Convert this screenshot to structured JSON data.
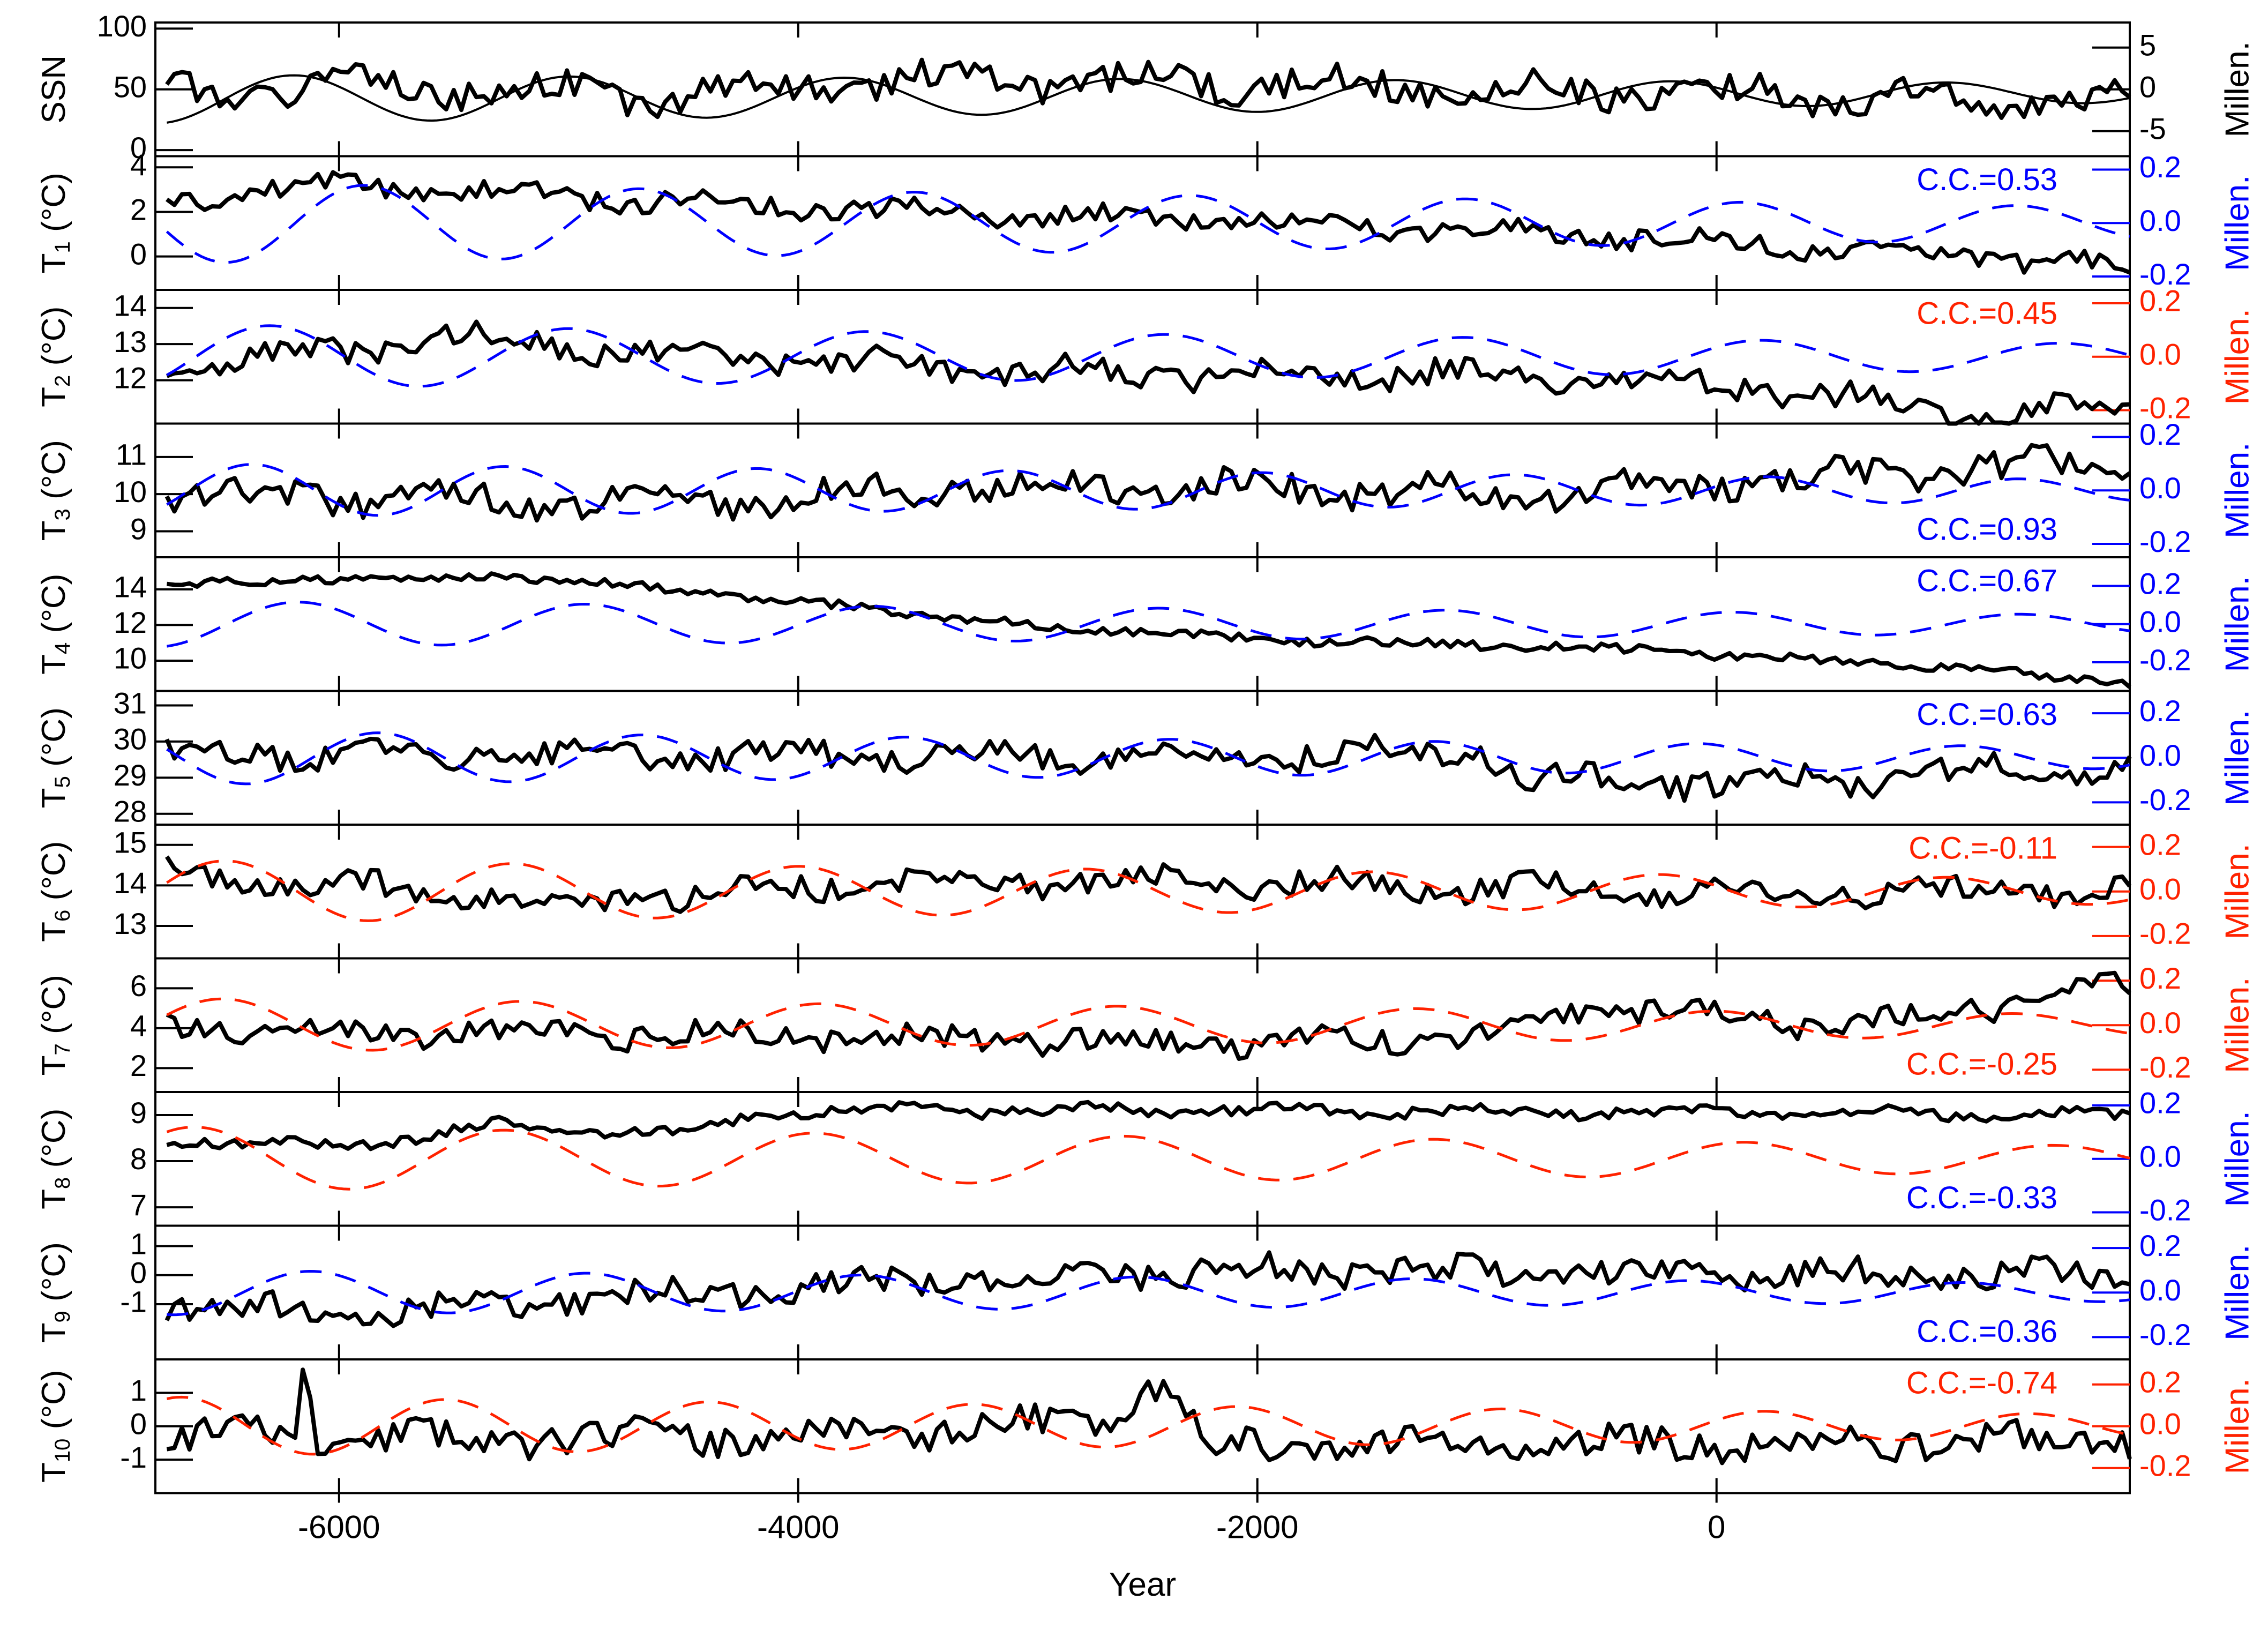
{
  "chart_data": {
    "type": "line",
    "xlabel": "Year",
    "xlim": [
      -6800,
      1800
    ],
    "xticks": [
      -6000,
      -4000,
      -2000,
      0
    ],
    "grid": false,
    "colors": {
      "black": "#000000",
      "blue": "#0000ff",
      "red": "#ff2200"
    },
    "panels": [
      {
        "ylabel": "SSN",
        "sub": "",
        "unit": "",
        "ylim": [
          -5,
          105
        ],
        "yticks": [
          0,
          50,
          100
        ],
        "rlim": [
          -8,
          8
        ],
        "rticks": [
          5,
          0,
          -5
        ],
        "rlabel": "Millen.",
        "rcolor": "#000000",
        "cc": "",
        "cc_pos": "top",
        "seed": 1,
        "amp": 22,
        "noise": 12,
        "series": [
          {
            "role": "data",
            "color": "#000000",
            "base": [
              [
                -6750,
                48
              ],
              [
                -6000,
                52
              ],
              [
                -4500,
                45
              ],
              [
                -3500,
                58
              ],
              [
                -2000,
                55
              ],
              [
                -900,
                50
              ],
              [
                1000,
                42
              ],
              [
                1800,
                40
              ]
            ]
          },
          {
            "role": "millennial",
            "color": "#000000",
            "style": "solid",
            "base": [
              [
                -6750,
                -1
              ],
              [
                1800,
                0
              ]
            ],
            "amp": 4,
            "period": 1200,
            "phase": 2.6
          }
        ]
      },
      {
        "ylabel": "T",
        "sub": "1",
        "unit": "(°C)",
        "ylim": [
          -1.5,
          4.5
        ],
        "yticks": [
          0,
          2,
          4
        ],
        "rlim": [
          -0.25,
          0.25
        ],
        "rticks": [
          0.2,
          0.0,
          -0.2
        ],
        "rlabel": "Millen.",
        "rcolor": "#0000ff",
        "cc": "C.C.=0.53",
        "cc_pos": "top",
        "seed": 2,
        "amp": 0.7,
        "noise": 0.45,
        "series": [
          {
            "role": "data",
            "color": "#000000",
            "base": [
              [
                -6750,
                2.5
              ],
              [
                -6000,
                3.2
              ],
              [
                -4000,
                2.2
              ],
              [
                -2000,
                1.6
              ],
              [
                0,
                0.7
              ],
              [
                1800,
                -0.4
              ]
            ]
          },
          {
            "role": "millennial",
            "color": "#0000ff",
            "style": "dashed",
            "base": [
              [
                -6750,
                0.0
              ],
              [
                1800,
                0.0
              ]
            ],
            "amp": 0.15,
            "period": 1200,
            "phase": 1.0
          }
        ]
      },
      {
        "ylabel": "T",
        "sub": "2",
        "unit": "(°C)",
        "ylim": [
          10.8,
          14.5
        ],
        "yticks": [
          12,
          13,
          14
        ],
        "rlim": [
          -0.25,
          0.25
        ],
        "rticks": [
          0.2,
          0.0,
          -0.2
        ],
        "rlabel": "Millen.",
        "rcolor": "#ff2200",
        "cc": "C.C.=0.45",
        "cc_pos": "top",
        "seed": 3,
        "amp": 0.6,
        "noise": 0.35,
        "series": [
          {
            "role": "data",
            "color": "#000000",
            "base": [
              [
                -6750,
                12.2
              ],
              [
                -5500,
                13.2
              ],
              [
                -4500,
                12.7
              ],
              [
                -3000,
                12.2
              ],
              [
                -1000,
                12.2
              ],
              [
                0,
                11.9
              ],
              [
                1200,
                11.0
              ],
              [
                1800,
                11.3
              ]
            ]
          },
          {
            "role": "millennial",
            "color": "#0000ff",
            "style": "dashed",
            "base": [
              [
                -6750,
                0.0
              ],
              [
                1800,
                0.0
              ]
            ],
            "amp": 0.12,
            "period": 1300,
            "phase": 0.6
          }
        ]
      },
      {
        "ylabel": "T",
        "sub": "3",
        "unit": "(°C)",
        "ylim": [
          8.3,
          11.9
        ],
        "yticks": [
          9,
          10,
          11
        ],
        "rlim": [
          -0.25,
          0.25
        ],
        "rticks": [
          0.2,
          0.0,
          -0.2
        ],
        "rlabel": "Millen.",
        "rcolor": "#0000ff",
        "cc": "C.C.=0.93",
        "cc_pos": "bottom",
        "seed": 4,
        "amp": 0.6,
        "noise": 0.4,
        "series": [
          {
            "role": "data",
            "color": "#000000",
            "base": [
              [
                -6750,
                10.0
              ],
              [
                -4500,
                9.8
              ],
              [
                -3000,
                10.3
              ],
              [
                -1000,
                10.0
              ],
              [
                0,
                10.3
              ],
              [
                1800,
                10.9
              ]
            ]
          },
          {
            "role": "millennial",
            "color": "#0000ff",
            "style": "dashed",
            "base": [
              [
                -6750,
                0.0
              ],
              [
                1800,
                0.0
              ]
            ],
            "amp": 0.1,
            "period": 1100,
            "phase": 0.3
          }
        ]
      },
      {
        "ylabel": "T",
        "sub": "4",
        "unit": "(°C)",
        "ylim": [
          8.3,
          15.8
        ],
        "yticks": [
          10,
          12,
          14
        ],
        "rlim": [
          -0.35,
          0.35
        ],
        "rticks": [
          0.2,
          0.0,
          -0.2
        ],
        "rlabel": "Millen.",
        "rcolor": "#0000ff",
        "cc": "C.C.=0.67",
        "cc_pos": "top",
        "seed": 5,
        "amp": 0.2,
        "noise": 0.25,
        "series": [
          {
            "role": "data",
            "color": "#000000",
            "base": [
              [
                -6750,
                14.2
              ],
              [
                -6000,
                14.6
              ],
              [
                -5200,
                14.7
              ],
              [
                -4000,
                13.3
              ],
              [
                -3000,
                12.0
              ],
              [
                -2000,
                11.2
              ],
              [
                -500,
                10.7
              ],
              [
                1000,
                9.6
              ],
              [
                1800,
                8.8
              ]
            ]
          },
          {
            "role": "millennial",
            "color": "#0000ff",
            "style": "dashed",
            "base": [
              [
                -6750,
                0.0
              ],
              [
                1800,
                0.0
              ]
            ],
            "amp": 0.12,
            "period": 1250,
            "phase": 1.2
          }
        ]
      },
      {
        "ylabel": "T",
        "sub": "5",
        "unit": "(°C)",
        "ylim": [
          27.7,
          31.4
        ],
        "yticks": [
          28,
          29,
          30,
          31
        ],
        "rlim": [
          -0.3,
          0.3
        ],
        "rticks": [
          0.2,
          0.0,
          -0.2
        ],
        "rlabel": "Millen.",
        "rcolor": "#0000ff",
        "cc": "C.C.=0.63",
        "cc_pos": "top",
        "seed": 6,
        "amp": 0.6,
        "noise": 0.35,
        "series": [
          {
            "role": "data",
            "color": "#000000",
            "base": [
              [
                -6750,
                29.7
              ],
              [
                -4000,
                29.6
              ],
              [
                -1000,
                29.7
              ],
              [
                -800,
                28.9
              ],
              [
                500,
                28.9
              ],
              [
                1800,
                29.4
              ]
            ]
          },
          {
            "role": "millennial",
            "color": "#0000ff",
            "style": "dashed",
            "base": [
              [
                -6750,
                0.0
              ],
              [
                1800,
                0.0
              ]
            ],
            "amp": 0.12,
            "period": 1150,
            "phase": 2.0
          }
        ]
      },
      {
        "ylabel": "T",
        "sub": "6",
        "unit": "(°C)",
        "ylim": [
          12.2,
          15.5
        ],
        "yticks": [
          13,
          14,
          15
        ],
        "rlim": [
          -0.3,
          0.3
        ],
        "rticks": [
          0.2,
          0.0,
          -0.2
        ],
        "rlabel": "Millen.",
        "rcolor": "#ff2200",
        "cc": "C.C.=-0.11",
        "cc_pos": "top",
        "seed": 7,
        "amp": 0.5,
        "noise": 0.3,
        "series": [
          {
            "role": "data",
            "color": "#000000",
            "base": [
              [
                -6750,
                14.3
              ],
              [
                -5000,
                13.6
              ],
              [
                -3500,
                14.1
              ],
              [
                -2000,
                14.1
              ],
              [
                0,
                13.8
              ],
              [
                1800,
                13.9
              ]
            ]
          },
          {
            "role": "millennial",
            "color": "#ff2200",
            "style": "dashed",
            "base": [
              [
                -6750,
                0.0
              ],
              [
                1800,
                0.0
              ]
            ],
            "amp": 0.14,
            "period": 1250,
            "phase": 2.8
          }
        ]
      },
      {
        "ylabel": "T",
        "sub": "7",
        "unit": "(°C)",
        "ylim": [
          0.8,
          7.5
        ],
        "yticks": [
          2,
          4,
          6
        ],
        "rlim": [
          -0.3,
          0.3
        ],
        "rticks": [
          0.2,
          0.0,
          -0.2
        ],
        "rlabel": "Millen.",
        "rcolor": "#ff2200",
        "cc": "C.C.=-0.25",
        "cc_pos": "bottom",
        "seed": 8,
        "amp": 0.8,
        "noise": 0.6,
        "series": [
          {
            "role": "data",
            "color": "#000000",
            "base": [
              [
                -6750,
                4.0
              ],
              [
                -4000,
                3.6
              ],
              [
                -2000,
                3.2
              ],
              [
                -900,
                3.6
              ],
              [
                -500,
                5.2
              ],
              [
                500,
                4.0
              ],
              [
                1800,
                6.1
              ]
            ]
          },
          {
            "role": "millennial",
            "color": "#ff2200",
            "style": "dashed",
            "base": [
              [
                -6750,
                0.0
              ],
              [
                1800,
                0.0
              ]
            ],
            "amp": 0.12,
            "period": 1300,
            "phase": 1.6
          }
        ]
      },
      {
        "ylabel": "T",
        "sub": "8",
        "unit": "(°C)",
        "ylim": [
          6.6,
          9.5
        ],
        "yticks": [
          7,
          8,
          9
        ],
        "rlim": [
          -0.25,
          0.25
        ],
        "rticks": [
          0.2,
          0.0,
          -0.2
        ],
        "rlabel": "Millen.",
        "rcolor": "#0000ff",
        "cc": "C.C.=-0.33",
        "cc_pos": "bottom",
        "seed": 9,
        "amp": 0.2,
        "noise": 0.12,
        "series": [
          {
            "role": "data",
            "color": "#000000",
            "base": [
              [
                -6750,
                8.5
              ],
              [
                -6000,
                8.3
              ],
              [
                -5300,
                8.8
              ],
              [
                -4600,
                8.6
              ],
              [
                -4000,
                9.1
              ],
              [
                -2000,
                9.1
              ],
              [
                1800,
                9.0
              ]
            ]
          },
          {
            "role": "millennial",
            "color": "#ff2200",
            "style": "dashed",
            "base": [
              [
                -6750,
                0.0
              ],
              [
                1800,
                0.0
              ]
            ],
            "amp": 0.12,
            "period": 1350,
            "phase": 1.0
          }
        ]
      },
      {
        "ylabel": "T",
        "sub": "9",
        "unit": "(°C)",
        "ylim": [
          -2.9,
          1.7
        ],
        "yticks": [
          -1,
          0,
          1
        ],
        "rlim": [
          -0.3,
          0.3
        ],
        "rticks": [
          0.2,
          0.0,
          -0.2
        ],
        "rlabel": "Millen.",
        "rcolor": "#0000ff",
        "cc": "C.C.=0.36",
        "cc_pos": "bottom",
        "seed": 10,
        "amp": 0.6,
        "noise": 0.45,
        "series": [
          {
            "role": "data",
            "color": "#000000",
            "base": [
              [
                -6750,
                -1.0
              ],
              [
                -6000,
                -1.3
              ],
              [
                -4000,
                -0.4
              ],
              [
                -2000,
                0.2
              ],
              [
                0,
                0.0
              ],
              [
                1800,
                0.0
              ]
            ]
          },
          {
            "role": "millennial",
            "color": "#0000ff",
            "style": "dashed",
            "base": [
              [
                -6750,
                0.0
              ],
              [
                1800,
                0.0
              ]
            ],
            "amp": 0.1,
            "period": 1200,
            "phase": 2.2
          }
        ]
      },
      {
        "ylabel": "T",
        "sub": "10",
        "unit": "(°C)",
        "ylim": [
          -2.0,
          2.0
        ],
        "yticks": [
          -1,
          0,
          1
        ],
        "rlim": [
          -0.32,
          0.32
        ],
        "rticks": [
          0.2,
          0.0,
          -0.2
        ],
        "rlabel": "Millen.",
        "rcolor": "#ff2200",
        "cc": "C.C.=-0.74",
        "cc_pos": "top",
        "seed": 11,
        "amp": 0.55,
        "noise": 0.45,
        "series": [
          {
            "role": "data",
            "color": "#000000",
            "base": [
              [
                -6750,
                -0.3
              ],
              [
                -6200,
                -0.3
              ],
              [
                -6150,
                1.8
              ],
              [
                -6100,
                -0.4
              ],
              [
                -4000,
                -0.3
              ],
              [
                -2600,
                0.2
              ],
              [
                -2500,
                1.2
              ],
              [
                -2350,
                0.8
              ],
              [
                -2200,
                -0.6
              ],
              [
                0,
                -0.5
              ],
              [
                1800,
                -0.4
              ]
            ]
          },
          {
            "role": "millennial",
            "color": "#ff2200",
            "style": "dashed",
            "base": [
              [
                -6750,
                0.0
              ],
              [
                1800,
                0.0
              ]
            ],
            "amp": 0.14,
            "period": 1150,
            "phase": 0.4
          }
        ]
      }
    ]
  }
}
